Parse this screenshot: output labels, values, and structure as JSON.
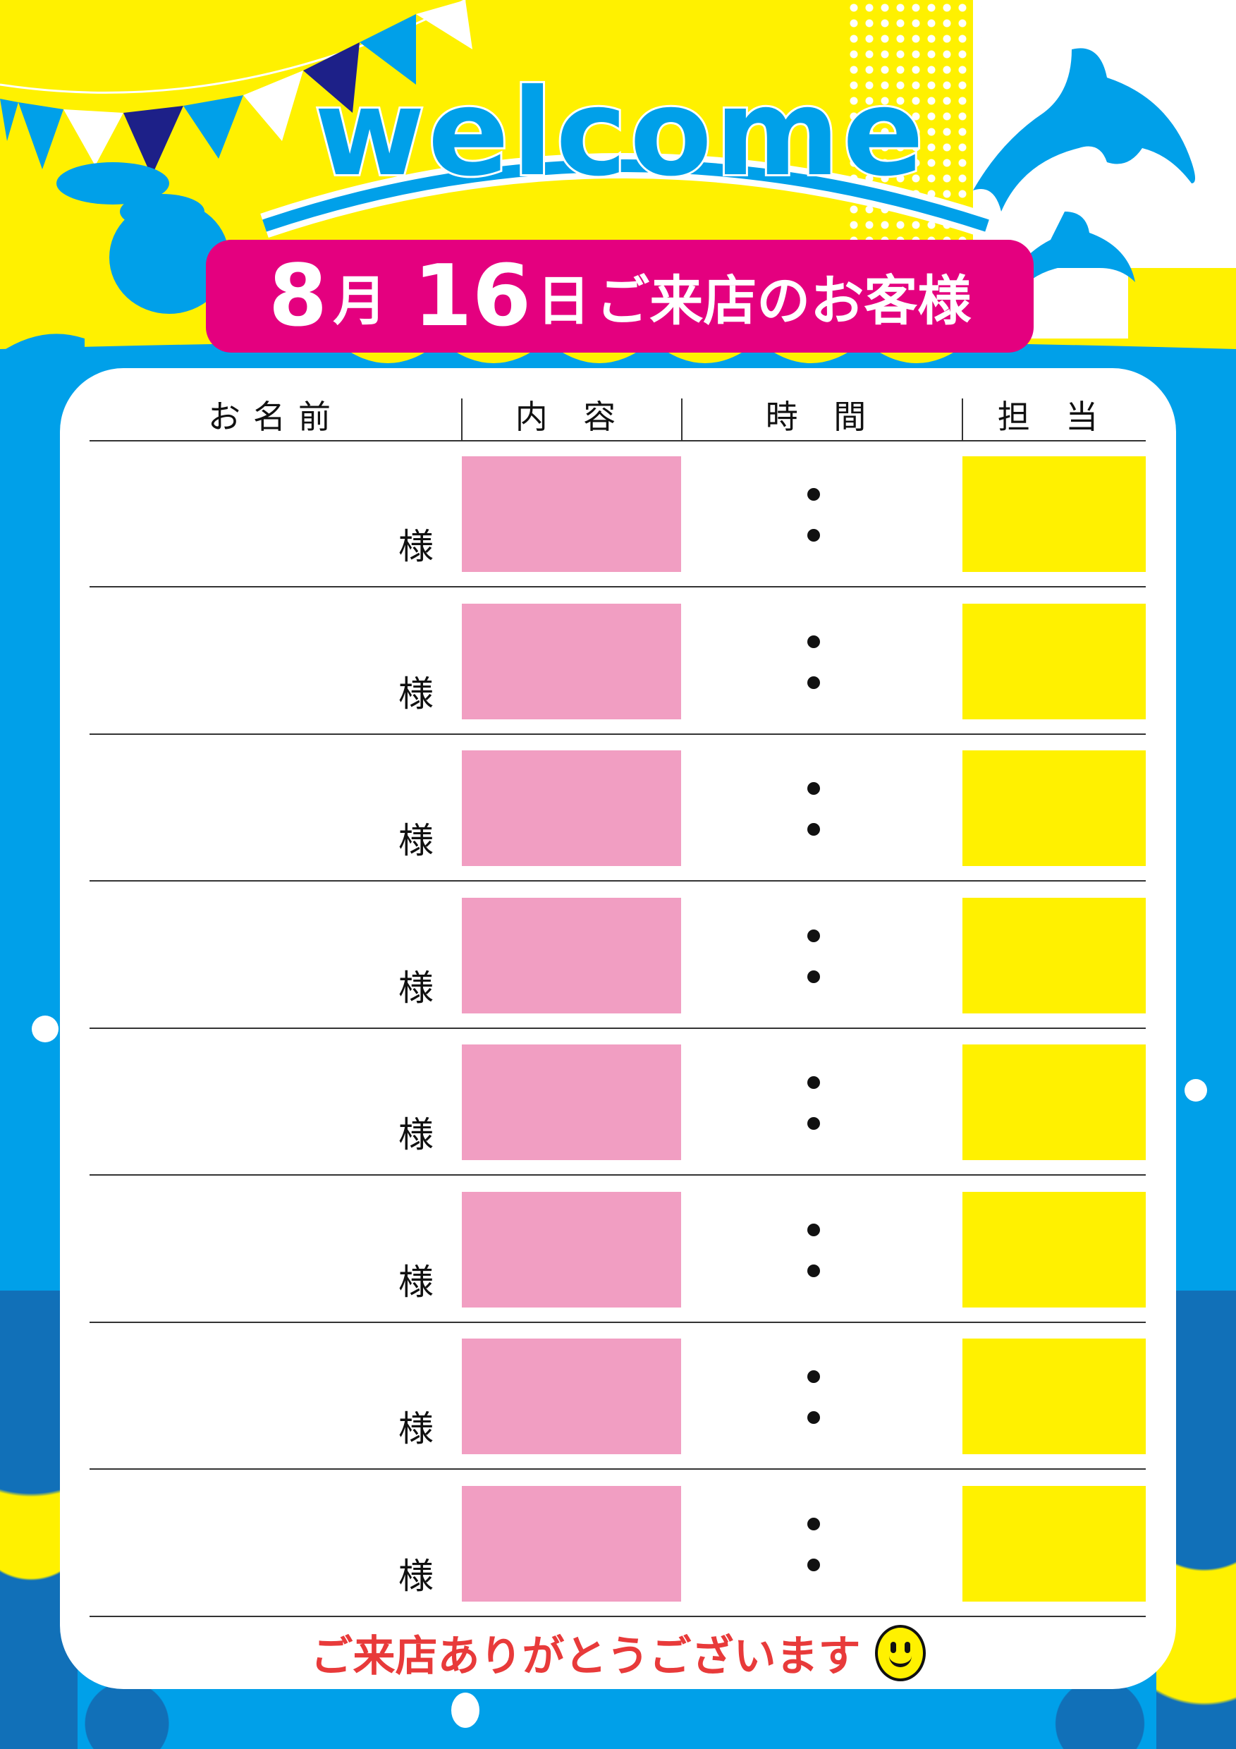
{
  "header": {
    "welcome": "welcome",
    "month": "8",
    "month_unit": "月",
    "day": "16",
    "day_unit": "日",
    "subtitle": "ご来店のお客様"
  },
  "table": {
    "columns": [
      "お名前",
      "内 容",
      "時 間",
      "担 当"
    ],
    "rows": [
      {
        "name_suffix": "様",
        "time_sep": ":"
      },
      {
        "name_suffix": "様",
        "time_sep": ":"
      },
      {
        "name_suffix": "様",
        "time_sep": ":"
      },
      {
        "name_suffix": "様",
        "time_sep": ":"
      },
      {
        "name_suffix": "様",
        "time_sep": ":"
      },
      {
        "name_suffix": "様",
        "time_sep": ":"
      },
      {
        "name_suffix": "様",
        "time_sep": ":"
      },
      {
        "name_suffix": "様",
        "time_sep": ":"
      }
    ]
  },
  "footer": {
    "thanks": "ご来店ありがとうございます",
    "icon": "smiley-icon"
  },
  "colors": {
    "blue": "#00a0e9",
    "yellow": "#fff100",
    "magenta": "#e4007f",
    "pink": "#f19ec2",
    "red": "#e83a3a",
    "navy": "#1d2088"
  }
}
